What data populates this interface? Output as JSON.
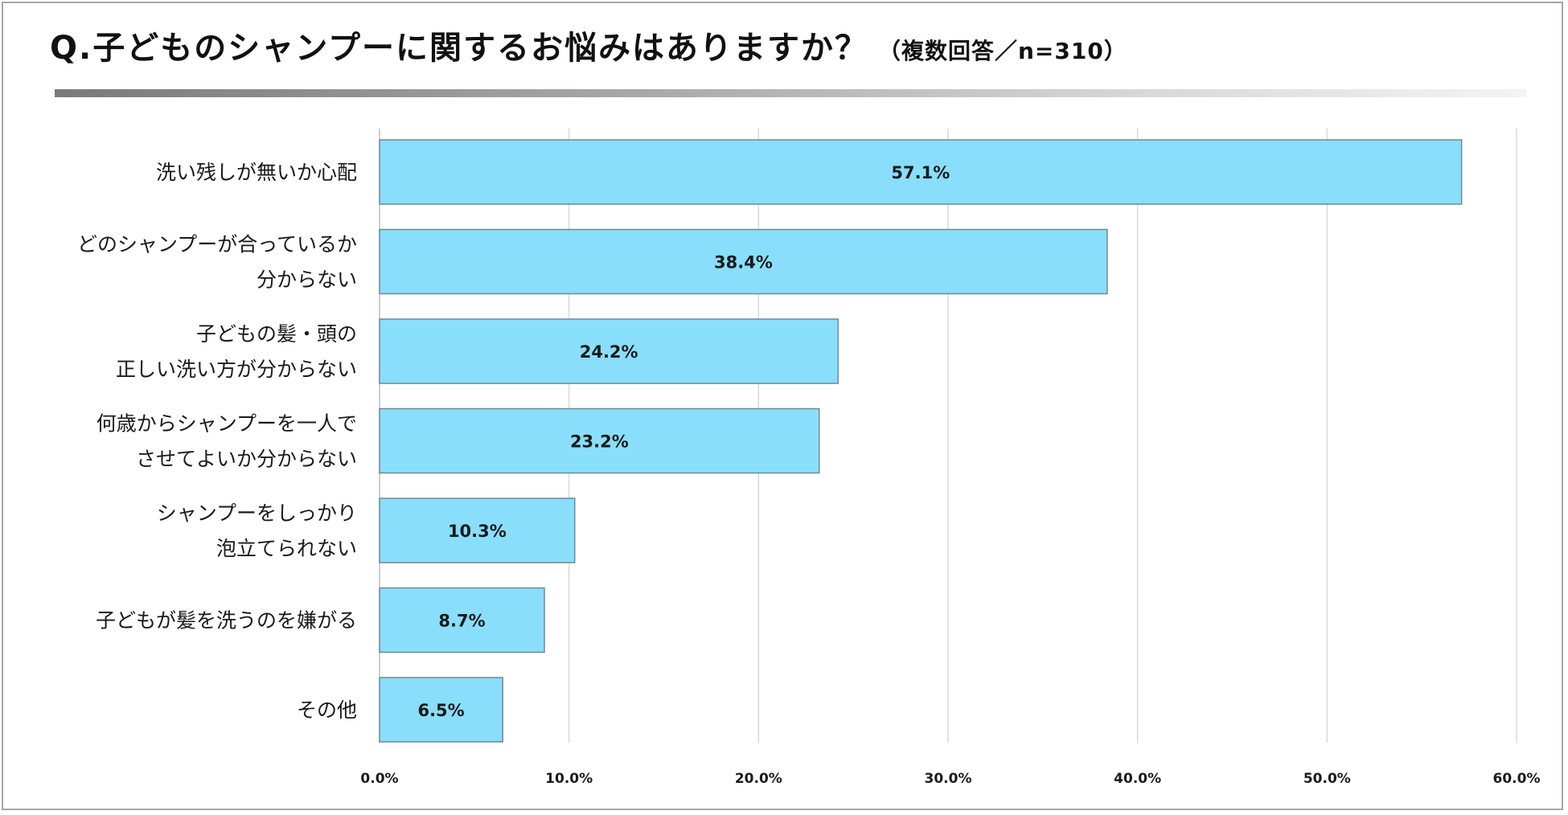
{
  "title": {
    "main": "Q.子どものシャンプーに関するお悩みはありますか？",
    "sub": "（複数回答／n=310）"
  },
  "colors": {
    "bar_fill": "#89DEFC",
    "bar_stroke": "#6e8a96",
    "grid": "#d9d9d9"
  },
  "chart_data": {
    "type": "bar",
    "orientation": "horizontal",
    "categories": [
      [
        "洗い残しが無いか心配"
      ],
      [
        "どのシャンプーが合っているか",
        "分からない"
      ],
      [
        "子どもの髪・頭の",
        "正しい洗い方が分からない"
      ],
      [
        "何歳からシャンプーを一人で",
        "させてよいか分からない"
      ],
      [
        "シャンプーをしっかり",
        "泡立てられない"
      ],
      [
        "子どもが髪を洗うのを嫌がる"
      ],
      [
        "その他"
      ]
    ],
    "values": [
      57.1,
      38.4,
      24.2,
      23.2,
      10.3,
      8.7,
      6.5
    ],
    "value_labels": [
      "57.1%",
      "38.4%",
      "24.2%",
      "23.2%",
      "10.3%",
      "8.7%",
      "6.5%"
    ],
    "xlim": [
      0,
      60
    ],
    "xticks": [
      0,
      10,
      20,
      30,
      40,
      50,
      60
    ],
    "xtick_labels": [
      "0.0%",
      "10.0%",
      "20.0%",
      "30.0%",
      "40.0%",
      "50.0%",
      "60.0%"
    ],
    "grid": true,
    "xlabel": "",
    "ylabel": ""
  }
}
